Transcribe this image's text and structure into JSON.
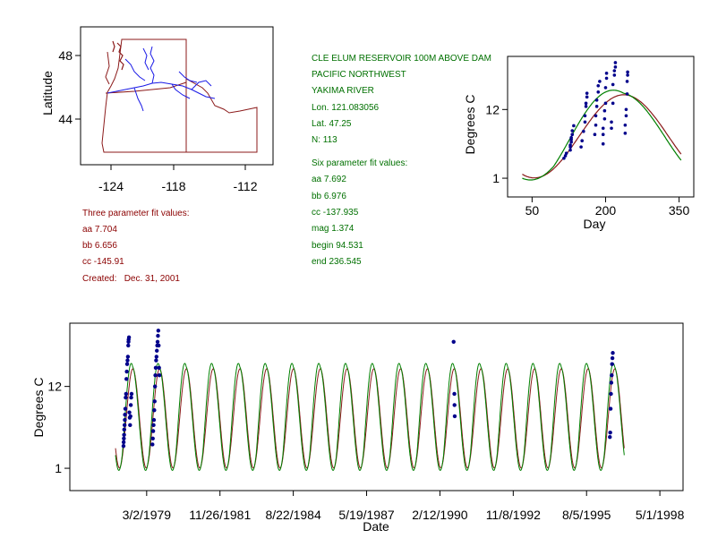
{
  "colors": {
    "state_lines": "#8b1a1a",
    "rivers": "#1a1ae6",
    "points": "#00008b",
    "fit_green": "#008000",
    "fit_red": "#8b1a1a",
    "info_green": "#007000",
    "info_red": "#8b0000"
  },
  "map": {
    "ylabel": "Latitude",
    "xticks": [
      "-124",
      "-118",
      "-112"
    ],
    "yticks": [
      "48",
      "44"
    ]
  },
  "site_info": {
    "title": "CLE ELUM RESERVOIR 100M ABOVE DAM",
    "region": "PACIFIC NORTHWEST",
    "river": "YAKIMA RIVER",
    "lon": "Lon. 121.083056",
    "lat": "Lat. 47.25",
    "n": "N: 113"
  },
  "six_param": {
    "heading": "Six parameter fit values:",
    "aa": "aa 7.692",
    "bb": "bb 6.976",
    "cc": "cc -137.935",
    "mag": "mag 1.374",
    "begin": "begin 94.531",
    "end": "end 236.545"
  },
  "three_param": {
    "heading": "Three parameter fit values:",
    "aa": "aa 7.704",
    "bb": "bb 6.656",
    "cc": "cc -145.91",
    "created": "Created:   Dec. 31, 2001"
  },
  "chart_data": [
    {
      "type": "scatter",
      "xlabel": "Day",
      "ylabel": "Degrees C",
      "xlim": [
        0,
        380
      ],
      "ylim": [
        -2,
        20.5
      ],
      "xticks": [
        50,
        200,
        350
      ],
      "xtick_labels": [
        "50",
        "200",
        "350"
      ],
      "yticks": [
        1,
        12
      ],
      "ytick_labels": [
        "1",
        "12"
      ],
      "fit_six": {
        "aa": 7.692,
        "bb": 6.976,
        "cc": -137.935,
        "mag": 1.374,
        "begin": 94.531,
        "end": 236.545
      },
      "fit_three": {
        "aa": 7.704,
        "bb": 6.656,
        "cc": -145.91
      },
      "curve_x_range": [
        30,
        355
      ],
      "points": [
        [
          115,
          4.2
        ],
        [
          118,
          4.6
        ],
        [
          120,
          5.0
        ],
        [
          128,
          5.5
        ],
        [
          128,
          6.0
        ],
        [
          128,
          6.3
        ],
        [
          130,
          6.8
        ],
        [
          130,
          7.2
        ],
        [
          130,
          7.5
        ],
        [
          132,
          8.0
        ],
        [
          132,
          8.6
        ],
        [
          135,
          9.4
        ],
        [
          150,
          6.0
        ],
        [
          152,
          7.0
        ],
        [
          155,
          8.5
        ],
        [
          158,
          10.0
        ],
        [
          158,
          11.0
        ],
        [
          160,
          12.5
        ],
        [
          160,
          13.0
        ],
        [
          162,
          14.0
        ],
        [
          162,
          14.6
        ],
        [
          178,
          8.0
        ],
        [
          180,
          9.5
        ],
        [
          180,
          11.0
        ],
        [
          182,
          12.5
        ],
        [
          182,
          13.5
        ],
        [
          185,
          14.8
        ],
        [
          185,
          15.8
        ],
        [
          188,
          16.5
        ],
        [
          195,
          6.5
        ],
        [
          195,
          8.0
        ],
        [
          195,
          9.0
        ],
        [
          198,
          10.5
        ],
        [
          198,
          11.8
        ],
        [
          200,
          13.0
        ],
        [
          200,
          15.5
        ],
        [
          202,
          17.0
        ],
        [
          202,
          17.8
        ],
        [
          212,
          9.0
        ],
        [
          212,
          10.0
        ],
        [
          215,
          13.0
        ],
        [
          215,
          16.0
        ],
        [
          218,
          17.5
        ],
        [
          218,
          18.2
        ],
        [
          220,
          18.8
        ],
        [
          220,
          19.5
        ],
        [
          240,
          8.2
        ],
        [
          240,
          9.5
        ],
        [
          242,
          11.0
        ],
        [
          242,
          12.0
        ],
        [
          244,
          14.5
        ],
        [
          244,
          16.5
        ],
        [
          245,
          17.5
        ],
        [
          245,
          18.0
        ]
      ]
    },
    {
      "type": "line",
      "xlabel": "Date",
      "ylabel": "Degrees C",
      "xlim": [
        "1976-04-18",
        "1999-03-13"
      ],
      "ylim": [
        -2,
        20.5
      ],
      "xticks": [
        "1979-03-02",
        "1981-11-26",
        "1984-08-22",
        "1987-05-19",
        "1990-02-12",
        "1992-11-08",
        "1995-08-05",
        "1998-05-01"
      ],
      "xtick_labels": [
        "3/2/1979",
        "11/26/1981",
        "8/22/1984",
        "5/19/1987",
        "2/12/1990",
        "11/8/1992",
        "8/5/1995",
        "5/1/1998"
      ],
      "yticks": [
        1,
        12
      ],
      "ytick_labels": [
        "1",
        "12"
      ],
      "fit_span": [
        "1978-01-01",
        "1996-12-31"
      ],
      "point_groups": [
        {
          "year": 1978,
          "points": [
            [
              110,
              4.0
            ],
            [
              112,
              4.5
            ],
            [
              115,
              5.0
            ],
            [
              118,
              5.5
            ],
            [
              120,
              6.2
            ],
            [
              125,
              6.8
            ],
            [
              128,
              7.5
            ],
            [
              130,
              8.2
            ],
            [
              135,
              9.0
            ],
            [
              140,
              10.5
            ],
            [
              145,
              11.0
            ],
            [
              150,
              13.0
            ],
            [
              155,
              14.0
            ],
            [
              160,
              15.0
            ],
            [
              165,
              15.5
            ],
            [
              170,
              16.0
            ],
            [
              175,
              17.5
            ],
            [
              178,
              18.0
            ],
            [
              180,
              18.3
            ],
            [
              185,
              18.6
            ],
            [
              190,
              8.5
            ],
            [
              195,
              7.8
            ],
            [
              200,
              6.8
            ],
            [
              205,
              8.0
            ],
            [
              210,
              9.5
            ],
            [
              215,
              10.5
            ],
            [
              220,
              11.0
            ]
          ]
        },
        {
          "year": 1979,
          "points": [
            [
              140,
              4.2
            ],
            [
              145,
              5.0
            ],
            [
              150,
              6.0
            ],
            [
              155,
              6.8
            ],
            [
              160,
              7.5
            ],
            [
              165,
              8.8
            ],
            [
              170,
              10.0
            ],
            [
              175,
              12.0
            ],
            [
              180,
              13.5
            ],
            [
              185,
              14.5
            ],
            [
              190,
              15.5
            ],
            [
              195,
              16.0
            ],
            [
              200,
              16.8
            ],
            [
              205,
              17.5
            ],
            [
              210,
              18.0
            ],
            [
              215,
              18.8
            ],
            [
              220,
              19.5
            ],
            [
              225,
              17.5
            ],
            [
              230,
              14.5
            ],
            [
              235,
              13.5
            ]
          ]
        },
        {
          "year": 1990,
          "points": [
            [
              230,
              18.0
            ],
            [
              240,
              11.0
            ],
            [
              242,
              9.5
            ],
            [
              245,
              8.0
            ]
          ]
        },
        {
          "year": 1996,
          "points": [
            [
              170,
              5.2
            ],
            [
              175,
              5.8
            ],
            [
              180,
              9.0
            ],
            [
              185,
              11.0
            ],
            [
              190,
              12.5
            ],
            [
              195,
              13.5
            ],
            [
              200,
              15.0
            ],
            [
              205,
              15.8
            ],
            [
              210,
              16.5
            ]
          ]
        }
      ]
    }
  ]
}
